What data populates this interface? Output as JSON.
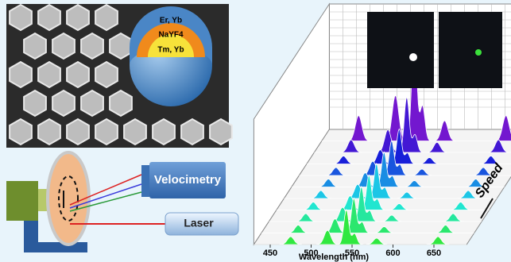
{
  "core_shell": {
    "outer": "Er, Yb",
    "middle": "NaYF4",
    "core": "Tm, Yb"
  },
  "setup": {
    "velocimetry": "Velocimetry",
    "laser": "Laser"
  },
  "spectra": {
    "x_label": "Wavelength (nm)",
    "x_ticks": [
      450,
      500,
      550,
      600,
      650
    ],
    "direction": "Speed"
  }
}
